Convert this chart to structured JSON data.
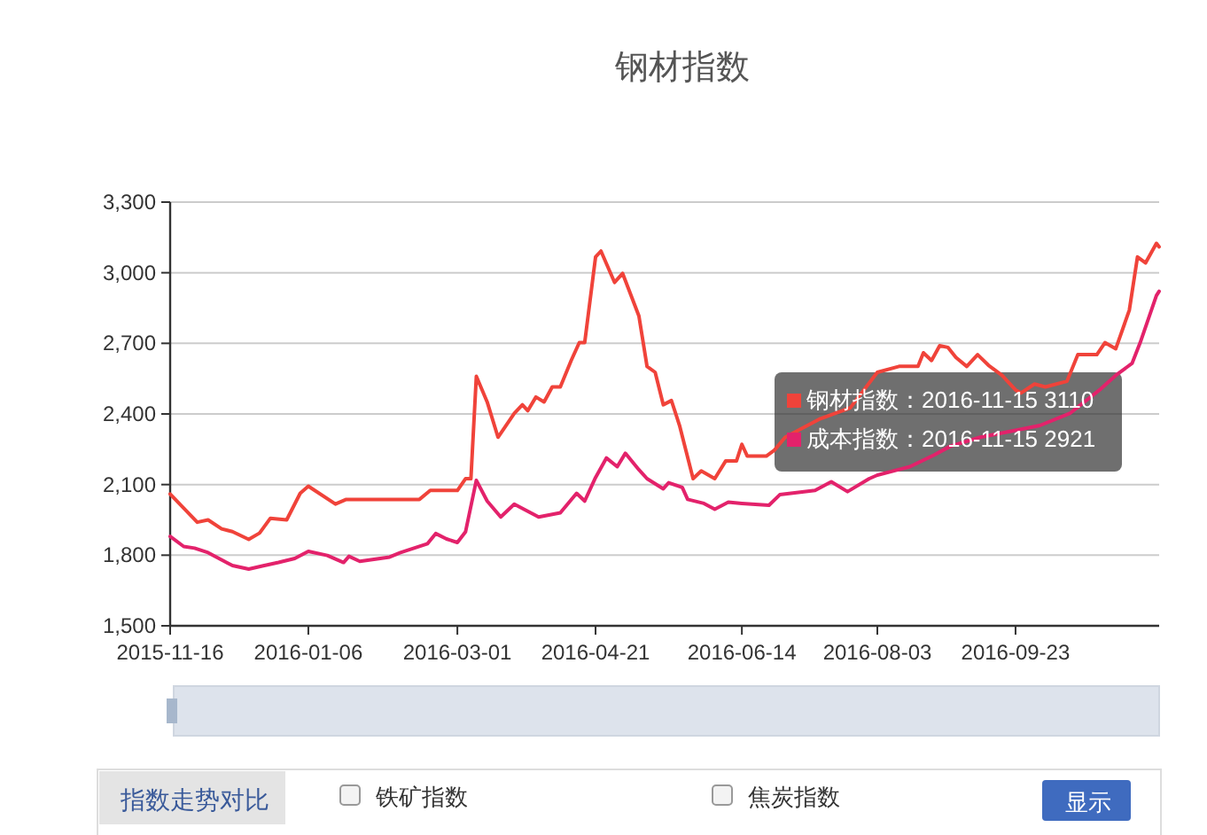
{
  "chart_data": {
    "type": "line",
    "title": "钢材指数",
    "series": [
      {
        "color": "#f0433a",
        "x": [
          "2015-11-16",
          "2015-11-26",
          "2015-11-30",
          "2015-12-05",
          "2015-12-09",
          "2015-12-15",
          "2015-12-19",
          "2015-12-23",
          "2015-12-29",
          "2016-01-03",
          "2016-01-06",
          "2016-01-16",
          "2016-01-20",
          "2016-02-16",
          "2016-02-20",
          "2016-03-01",
          "2016-03-04",
          "2016-03-06",
          "2016-03-08",
          "2016-03-12",
          "2016-03-16",
          "2016-03-22",
          "2016-03-25",
          "2016-03-27",
          "2016-03-30",
          "2016-04-02",
          "2016-04-05",
          "2016-04-08",
          "2016-04-12",
          "2016-04-15",
          "2016-04-17",
          "2016-04-21",
          "2016-04-23",
          "2016-04-28",
          "2016-05-01",
          "2016-05-07",
          "2016-05-10",
          "2016-05-13",
          "2016-05-16",
          "2016-05-19",
          "2016-05-22",
          "2016-05-27",
          "2016-05-30",
          "2016-06-04",
          "2016-06-08",
          "2016-06-12",
          "2016-06-14",
          "2016-06-16",
          "2016-06-23",
          "2016-06-26",
          "2016-06-30",
          "2016-07-13",
          "2016-07-24",
          "2016-08-03",
          "2016-08-11",
          "2016-08-18",
          "2016-08-20",
          "2016-08-23",
          "2016-08-26",
          "2016-08-29",
          "2016-09-01",
          "2016-09-05",
          "2016-09-09",
          "2016-09-13",
          "2016-09-18",
          "2016-09-23",
          "2016-09-25",
          "2016-09-30",
          "2016-10-04",
          "2016-10-12",
          "2016-10-16",
          "2016-10-23",
          "2016-10-26",
          "2016-10-30",
          "2016-11-04",
          "2016-11-07",
          "2016-11-10",
          "2016-11-14",
          "2016-11-15"
        ],
        "values": [
          2060,
          1940,
          1950,
          1912,
          1900,
          1867,
          1894,
          1957,
          1950,
          2063,
          2093,
          2017,
          2037,
          2037,
          2075,
          2075,
          2125,
          2125,
          2560,
          2451,
          2301,
          2402,
          2439,
          2414,
          2472,
          2451,
          2515,
          2515,
          2627,
          2703,
          2703,
          3067,
          3092,
          2959,
          2997,
          2816,
          2602,
          2577,
          2439,
          2457,
          2351,
          2125,
          2158,
          2125,
          2200,
          2200,
          2271,
          2221,
          2221,
          2246,
          2301,
          2380,
          2426,
          2577,
          2602,
          2602,
          2660,
          2627,
          2690,
          2683,
          2640,
          2602,
          2652,
          2607,
          2564,
          2502,
          2489,
          2527,
          2515,
          2539,
          2652,
          2652,
          2703,
          2677,
          2841,
          3067,
          3042,
          3125,
          3110
        ]
      },
      {
        "color": "#e3226b",
        "x": [
          "2015-11-16",
          "2015-11-21",
          "2015-11-25",
          "2015-11-30",
          "2015-12-04",
          "2015-12-09",
          "2015-12-15",
          "2015-12-20",
          "2015-12-26",
          "2016-01-01",
          "2016-01-06",
          "2016-01-13",
          "2016-01-19",
          "2016-01-21",
          "2016-01-25",
          "2016-02-05",
          "2016-02-09",
          "2016-02-19",
          "2016-02-22",
          "2016-02-26",
          "2016-03-01",
          "2016-03-04",
          "2016-03-08",
          "2016-03-12",
          "2016-03-17",
          "2016-03-22",
          "2016-03-31",
          "2016-04-08",
          "2016-04-14",
          "2016-04-17",
          "2016-04-21",
          "2016-04-25",
          "2016-04-29",
          "2016-05-02",
          "2016-05-07",
          "2016-05-10",
          "2016-05-16",
          "2016-05-18",
          "2016-05-23",
          "2016-05-25",
          "2016-05-31",
          "2016-06-04",
          "2016-06-09",
          "2016-06-14",
          "2016-06-24",
          "2016-06-28",
          "2016-07-11",
          "2016-07-17",
          "2016-07-23",
          "2016-07-31",
          "2016-08-03",
          "2016-08-15",
          "2016-08-24",
          "2016-08-30",
          "2016-09-10",
          "2016-09-23",
          "2016-10-02",
          "2016-10-13",
          "2016-10-24",
          "2016-10-30",
          "2016-11-05",
          "2016-11-08",
          "2016-11-14",
          "2016-11-15"
        ],
        "values": [
          1880,
          1837,
          1830,
          1811,
          1786,
          1756,
          1741,
          1754,
          1769,
          1786,
          1816,
          1799,
          1769,
          1795,
          1774,
          1792,
          1811,
          1849,
          1892,
          1869,
          1854,
          1899,
          2118,
          2030,
          1962,
          2017,
          1962,
          1980,
          2063,
          2030,
          2130,
          2213,
          2176,
          2233,
          2163,
          2125,
          2082,
          2108,
          2088,
          2037,
          2020,
          1995,
          2025,
          2020,
          2012,
          2057,
          2075,
          2112,
          2070,
          2125,
          2140,
          2176,
          2226,
          2263,
          2301,
          2330,
          2351,
          2402,
          2502,
          2564,
          2615,
          2703,
          2903,
          2921
        ]
      }
    ],
    "xlim": [
      "2015-11-16",
      "2016-11-15"
    ],
    "xticks": [
      {
        "value": "2015-11-16",
        "label": "2015-11-16"
      },
      {
        "value": "2016-01-06",
        "label": "2016-01-06"
      },
      {
        "value": "2016-03-01",
        "label": "2016-03-01"
      },
      {
        "value": "2016-04-21",
        "label": "2016-04-21"
      },
      {
        "value": "2016-06-14",
        "label": "2016-06-14"
      },
      {
        "value": "2016-08-03",
        "label": "2016-08-03"
      },
      {
        "value": "2016-09-23",
        "label": "2016-09-23"
      }
    ],
    "ylim": [
      1500,
      3300
    ],
    "yticks": [
      {
        "value": 1500,
        "label": "1,500"
      },
      {
        "value": 1800,
        "label": "1,800"
      },
      {
        "value": 2100,
        "label": "2,100"
      },
      {
        "value": 2400,
        "label": "2,400"
      },
      {
        "value": 2700,
        "label": "2,700"
      },
      {
        "value": 3000,
        "label": "3,000"
      },
      {
        "value": 3300,
        "label": "3,300"
      }
    ],
    "grid": "y",
    "line_style": "solid",
    "annotations": [
      "钢材指数：2016-11-15 3110",
      "成本指数：2016-11-15 2921",
      "指数走势对比",
      "铁矿指数",
      "焦炭指数",
      "显示"
    ]
  }
}
